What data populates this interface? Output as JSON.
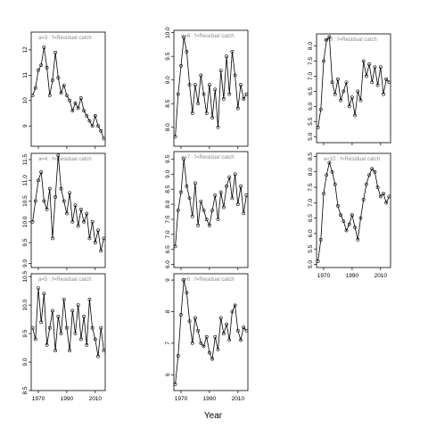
{
  "figure": {
    "xlabel": "Year"
  },
  "chart_data": [
    {
      "type": "line",
      "label": "a=3  :  f=Residual catch",
      "xlim": [
        1965,
        2017
      ],
      "ylim": [
        8.2,
        12.7
      ],
      "yticks": [
        9,
        10,
        11,
        12
      ],
      "xticks": [
        1970,
        1990,
        2010
      ],
      "x": [
        1966,
        1968,
        1970,
        1972,
        1974,
        1976,
        1978,
        1980,
        1982,
        1984,
        1986,
        1988,
        1990,
        1992,
        1994,
        1996,
        1998,
        2000,
        2002,
        2004,
        2006,
        2008,
        2010,
        2012,
        2014,
        2016
      ],
      "y": [
        10.2,
        10.5,
        11.2,
        11.4,
        12.1,
        11.3,
        10.2,
        10.8,
        11.9,
        10.9,
        10.3,
        10.6,
        10.2,
        10.0,
        9.6,
        9.9,
        9.7,
        10.1,
        9.6,
        9.4,
        9.2,
        9.0,
        9.4,
        9.0,
        8.8,
        8.5
      ]
    },
    {
      "type": "line",
      "label": "a=6  :  f=Residual catch",
      "xlim": [
        1965,
        2017
      ],
      "ylim": [
        7.6,
        10.05
      ],
      "yticks": [
        8.0,
        8.5,
        9.0,
        9.5,
        10.0
      ],
      "xticks": [
        1970,
        1990,
        2010
      ],
      "x": [
        1966,
        1968,
        1970,
        1972,
        1974,
        1976,
        1978,
        1980,
        1982,
        1984,
        1986,
        1988,
        1990,
        1992,
        1994,
        1996,
        1998,
        2000,
        2002,
        2004,
        2006,
        2008,
        2010,
        2012,
        2014,
        2016
      ],
      "y": [
        7.8,
        8.7,
        9.3,
        9.9,
        9.6,
        8.9,
        8.3,
        8.9,
        8.5,
        9.1,
        8.7,
        8.3,
        8.9,
        8.2,
        8.8,
        8.0,
        9.2,
        8.6,
        9.5,
        8.7,
        9.6,
        9.1,
        8.4,
        8.9,
        8.6,
        8.7
      ]
    },
    {
      "type": "line",
      "label": "a=9  :  f=Residual catch",
      "xlim": [
        1965,
        2017
      ],
      "ylim": [
        4.8,
        8.4
      ],
      "yticks": [
        5.0,
        5.5,
        6.0,
        6.5,
        7.0,
        7.5,
        8.0
      ],
      "xticks": [
        1970,
        1990,
        2010
      ],
      "x": [
        1966,
        1968,
        1970,
        1972,
        1974,
        1976,
        1978,
        1980,
        1982,
        1984,
        1986,
        1988,
        1990,
        1992,
        1994,
        1996,
        1998,
        2000,
        2002,
        2004,
        2006,
        2008,
        2010,
        2012,
        2014,
        2016
      ],
      "y": [
        5.3,
        5.9,
        7.5,
        8.2,
        8.3,
        6.8,
        6.4,
        6.9,
        6.2,
        6.5,
        6.8,
        6.0,
        6.3,
        5.7,
        6.5,
        6.2,
        7.5,
        7.0,
        7.4,
        6.8,
        7.3,
        6.7,
        7.3,
        6.4,
        6.9,
        6.8
      ]
    },
    {
      "type": "line",
      "label": "a=4  :  f=Residual catch",
      "xlim": [
        1965,
        2017
      ],
      "ylim": [
        8.9,
        11.65
      ],
      "yticks": [
        9.0,
        9.5,
        10.0,
        10.5,
        11.0,
        11.5
      ],
      "xticks": [
        1970,
        1990,
        2010
      ],
      "x": [
        1966,
        1968,
        1970,
        1972,
        1974,
        1976,
        1978,
        1980,
        1982,
        1984,
        1986,
        1988,
        1990,
        1992,
        1994,
        1996,
        1998,
        2000,
        2002,
        2004,
        2006,
        2008,
        2010,
        2012,
        2014,
        2016
      ],
      "y": [
        10.0,
        10.5,
        11.0,
        11.2,
        10.5,
        10.3,
        10.8,
        9.6,
        10.6,
        11.6,
        10.8,
        10.5,
        10.2,
        10.7,
        10.0,
        10.4,
        9.9,
        10.3,
        10.0,
        10.2,
        9.6,
        10.0,
        9.5,
        9.8,
        9.3,
        9.6
      ]
    },
    {
      "type": "line",
      "label": "a=7  :  f=Residual catch",
      "xlim": [
        1965,
        2017
      ],
      "ylim": [
        5.9,
        9.75
      ],
      "yticks": [
        6.0,
        6.5,
        7.0,
        7.5,
        8.0,
        8.5,
        9.0,
        9.5
      ],
      "xticks": [
        1970,
        1990,
        2010
      ],
      "x": [
        1966,
        1968,
        1970,
        1972,
        1974,
        1976,
        1978,
        1980,
        1982,
        1984,
        1986,
        1988,
        1990,
        1992,
        1994,
        1996,
        1998,
        2000,
        2002,
        2004,
        2006,
        2008,
        2010,
        2012,
        2014,
        2016
      ],
      "y": [
        6.6,
        7.8,
        8.4,
        9.5,
        8.6,
        8.2,
        7.6,
        8.7,
        7.3,
        8.1,
        7.8,
        7.5,
        7.3,
        7.8,
        8.3,
        7.5,
        8.4,
        7.9,
        8.6,
        8.9,
        8.2,
        9.0,
        8.0,
        8.6,
        7.7,
        8.3
      ]
    },
    {
      "type": "line",
      "label": "a=10  :  f=Residual catch",
      "xlim": [
        1965,
        2017
      ],
      "ylim": [
        4.9,
        8.6
      ],
      "yticks": [
        5.0,
        5.5,
        6.0,
        6.5,
        7.0,
        7.5,
        8.0,
        8.5
      ],
      "xticks": [
        1970,
        1990,
        2010
      ],
      "x": [
        1966,
        1968,
        1970,
        1972,
        1974,
        1976,
        1978,
        1980,
        1982,
        1984,
        1986,
        1988,
        1990,
        1992,
        1994,
        1996,
        1998,
        2000,
        2002,
        2004,
        2006,
        2008,
        2010,
        2012,
        2014,
        2016
      ],
      "y": [
        5.1,
        5.8,
        7.3,
        7.9,
        8.3,
        8.0,
        7.6,
        6.9,
        6.6,
        6.4,
        6.1,
        6.3,
        6.6,
        6.2,
        5.8,
        6.5,
        7.1,
        7.6,
        7.9,
        8.1,
        8.0,
        7.5,
        7.2,
        7.3,
        7.0,
        7.2
      ]
    },
    {
      "type": "line",
      "label": "a=5  :  f=Residual catch",
      "xlim": [
        1965,
        2017
      ],
      "ylim": [
        8.5,
        10.55
      ],
      "yticks": [
        8.5,
        9.0,
        9.5,
        10.0,
        10.5
      ],
      "xticks": [
        1970,
        1990,
        2010
      ],
      "x": [
        1966,
        1968,
        1970,
        1972,
        1974,
        1976,
        1978,
        1980,
        1982,
        1984,
        1986,
        1988,
        1990,
        1992,
        1994,
        1996,
        1998,
        2000,
        2002,
        2004,
        2006,
        2008,
        2010,
        2012,
        2014,
        2016
      ],
      "y": [
        9.6,
        9.4,
        10.3,
        9.7,
        10.2,
        9.3,
        9.6,
        9.9,
        9.2,
        9.8,
        9.5,
        10.1,
        9.6,
        9.2,
        9.9,
        9.5,
        10.0,
        9.4,
        9.8,
        9.3,
        10.1,
        9.6,
        9.4,
        9.1,
        9.6,
        9.2
      ]
    },
    {
      "type": "line",
      "label": "a=8  :  f=Residual catch",
      "xlim": [
        1965,
        2017
      ],
      "ylim": [
        5.5,
        9.2
      ],
      "yticks": [
        6,
        7,
        8,
        9
      ],
      "xticks": [
        1970,
        1990,
        2010
      ],
      "x": [
        1966,
        1968,
        1970,
        1972,
        1974,
        1976,
        1978,
        1980,
        1982,
        1984,
        1986,
        1988,
        1990,
        1992,
        1994,
        1996,
        1998,
        2000,
        2002,
        2004,
        2006,
        2008,
        2010,
        2012,
        2014,
        2016
      ],
      "y": [
        5.7,
        6.6,
        7.9,
        9.0,
        8.6,
        7.7,
        7.0,
        7.8,
        7.4,
        7.0,
        6.9,
        7.2,
        6.7,
        6.5,
        7.2,
        6.8,
        7.8,
        7.3,
        7.6,
        7.1,
        8.0,
        8.2,
        7.4,
        7.1,
        7.5,
        7.4
      ]
    }
  ]
}
